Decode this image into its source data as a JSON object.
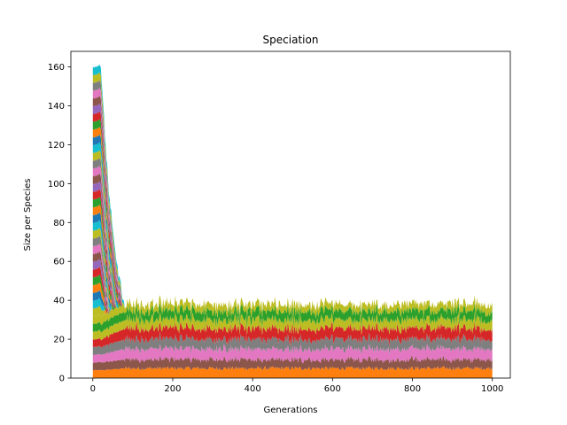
{
  "chart_data": {
    "type": "area",
    "stacked": true,
    "title": "Speciation",
    "xlabel": "Generations",
    "ylabel": "Size per Species",
    "xlim": [
      -55,
      1045
    ],
    "ylim": [
      0,
      168
    ],
    "xticks": [
      0,
      200,
      400,
      600,
      800,
      1000
    ],
    "yticks": [
      0,
      20,
      40,
      60,
      80,
      100,
      120,
      140,
      160
    ],
    "grid": false,
    "legend": "none",
    "initial_population": 160,
    "initial_species_count": 40,
    "initial_species_size": 4,
    "total_generations": 1000,
    "collapse_generation_range": [
      20,
      80
    ],
    "steady_state_total": 38,
    "colors": [
      "#1f77b4",
      "#ff7f0e",
      "#2ca02c",
      "#d62728",
      "#9467bd",
      "#8c564b",
      "#e377c2",
      "#7f7f7f",
      "#bcbd22",
      "#17becf"
    ],
    "surviving_species": [
      {
        "color": "#ff7f0e",
        "steady_size": 5
      },
      {
        "color": "#8c564b",
        "steady_size": 4.5
      },
      {
        "color": "#e377c2",
        "steady_size": 5.5
      },
      {
        "color": "#7f7f7f",
        "steady_size": 5
      },
      {
        "color": "#d62728",
        "steady_size": 5.5
      },
      {
        "color": "#bcbd22",
        "steady_size": 4.5
      },
      {
        "color": "#2ca02c",
        "steady_size": 4.5
      },
      {
        "color": "#bcbd22",
        "steady_size": 3.5
      }
    ]
  }
}
